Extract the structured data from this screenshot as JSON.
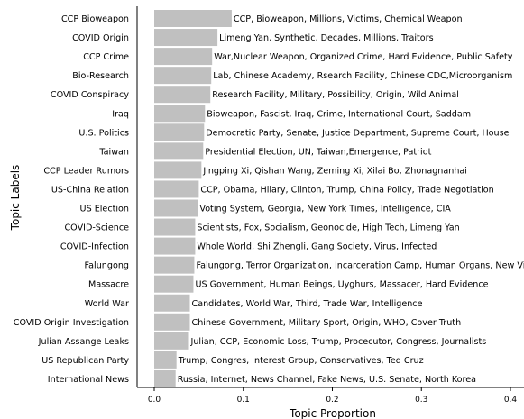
{
  "chart_data": {
    "type": "bar",
    "orientation": "horizontal",
    "xlabel": "Topic Proportion",
    "ylabel": "Topic Labels",
    "xlim": [
      0.0,
      0.4
    ],
    "xticks": [
      "0.0",
      "0.1",
      "0.2",
      "0.3",
      "0.4"
    ],
    "grid": false,
    "bar_color": "#c0c0c0",
    "categories": [
      "CCP Bioweapon",
      "COVID Origin",
      "CCP Crime",
      "Bio-Research",
      "COVID Conspiracy",
      "Iraq",
      "U.S. Politics",
      "Taiwan",
      "CCP Leader Rumors",
      "US-China Relation",
      "US Election",
      "COVID-Science",
      "COVID-Infection",
      "Falungong",
      "Massacre",
      "World War",
      "COVID Origin Investigation",
      "Julian Assange Leaks",
      "US Republican Party",
      "International News"
    ],
    "values": [
      0.087,
      0.071,
      0.065,
      0.064,
      0.063,
      0.057,
      0.056,
      0.055,
      0.053,
      0.05,
      0.049,
      0.046,
      0.046,
      0.045,
      0.044,
      0.04,
      0.04,
      0.039,
      0.025,
      0.024
    ],
    "bar_labels": [
      "CCP, Bioweapon, Millions, Victims, Chemical Weapon",
      "Limeng Yan, Synthetic, Decades, Millions, Traitors",
      "War,Nuclear Weapon, Organized Crime, Hard Evidence, Public Safety",
      "Lab, Chinese Academy, Rsearch Facility, Chinese CDC,Microorganism",
      "Research Facility, Military, Possibility, Origin, Wild Animal",
      "Bioweapon, Fascist, Iraq, Crime, International Court, Saddam",
      "Democratic Party, Senate, Justice Department, Supreme Court, House",
      "Presidential Election, UN, Taiwan,Emergence, Patriot",
      "Jingping Xi, Qishan Wang, Zeming Xi, Xilai Bo, Zhonagnanhai",
      "CCP, Obama, Hilary, Clinton, Trump, China Policy, Trade Negotiation",
      "Voting System, Georgia, New York Times, Intelligence, CIA",
      "Scientists, Fox, Socialism, Geonocide, High Tech, Limeng Yan",
      "Whole World, Shi Zhengli, Gang Society, Virus, Infected",
      "Falungong, Terror Organization, Incarceration Camp, Human Organs, New Virus",
      "US Government, Human Beings, Uyghurs, Massacer, Hard Evidence",
      "Candidates, World War, Third, Trade War, Intelligence",
      "Chinese Government, Military Sport, Origin, WHO, Cover Truth",
      "Julian, CCP, Economic Loss, Trump, Procecutor, Congress, Journalists",
      "Trump, Congres, Interest Group, Conservatives, Ted Cruz",
      "Russia, Internet, News Channel, Fake News, U.S. Senate, North Korea"
    ]
  }
}
